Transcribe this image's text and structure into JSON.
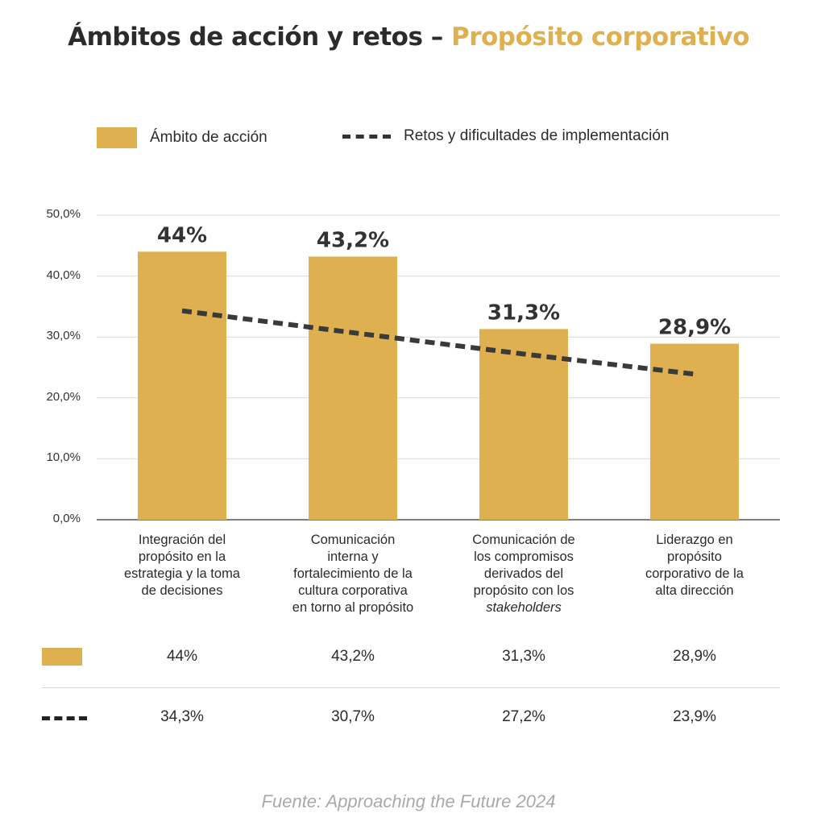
{
  "title": {
    "part1": "Ámbitos de acción y retos – ",
    "part2": "Propósito corporativo"
  },
  "colors": {
    "bar": "#dfb050",
    "line": "#3a3a3a",
    "grid": "#d7d7d7",
    "accent": "#dfb050"
  },
  "legend": {
    "bar_label": "Ámbito de acción",
    "line_label": "Retos y dificultades de implementación"
  },
  "chart_data": {
    "type": "bar",
    "categories": [
      "Integración del propósito en la estrategia y la toma de decisiones",
      "Comunicación interna y fortalecimiento de la cultura corporativa en torno al propósito",
      "Comunicación de los compromisos derivados del propósito con los stakeholders",
      "Liderazgo en propósito corporativo de la alta dirección"
    ],
    "category_lines": [
      [
        "Integración del",
        "propósito en la",
        "estrategia y la toma",
        "de decisiones"
      ],
      [
        "Comunicación",
        "interna y",
        "fortalecimiento de la",
        "cultura corporativa",
        "en torno al propósito"
      ],
      [
        "Comunicación de",
        "los compromisos",
        "derivados del",
        "propósito con los",
        "stakeholders"
      ],
      [
        "Liderazgo en",
        "propósito",
        "corporativo de la",
        "alta dirección"
      ]
    ],
    "series": [
      {
        "name": "Ámbito de acción",
        "type": "bar",
        "values": [
          44,
          43.2,
          31.3,
          28.9
        ],
        "labels": [
          "44%",
          "43,2%",
          "31,3%",
          "28,9%"
        ]
      },
      {
        "name": "Retos y dificultades de implementación",
        "type": "line-dashed",
        "values": [
          34.3,
          30.7,
          27.2,
          23.9
        ],
        "labels": [
          "34,3%",
          "30,7%",
          "27,2%",
          "23,9%"
        ]
      }
    ],
    "ylim": [
      0,
      50
    ],
    "yticks": [
      "0,0%",
      "10,0%",
      "20,0%",
      "30,0%",
      "40,0%",
      "50,0%"
    ],
    "grid": true,
    "legend_position": "top"
  },
  "source": "Fuente: Approaching the Future 2024"
}
